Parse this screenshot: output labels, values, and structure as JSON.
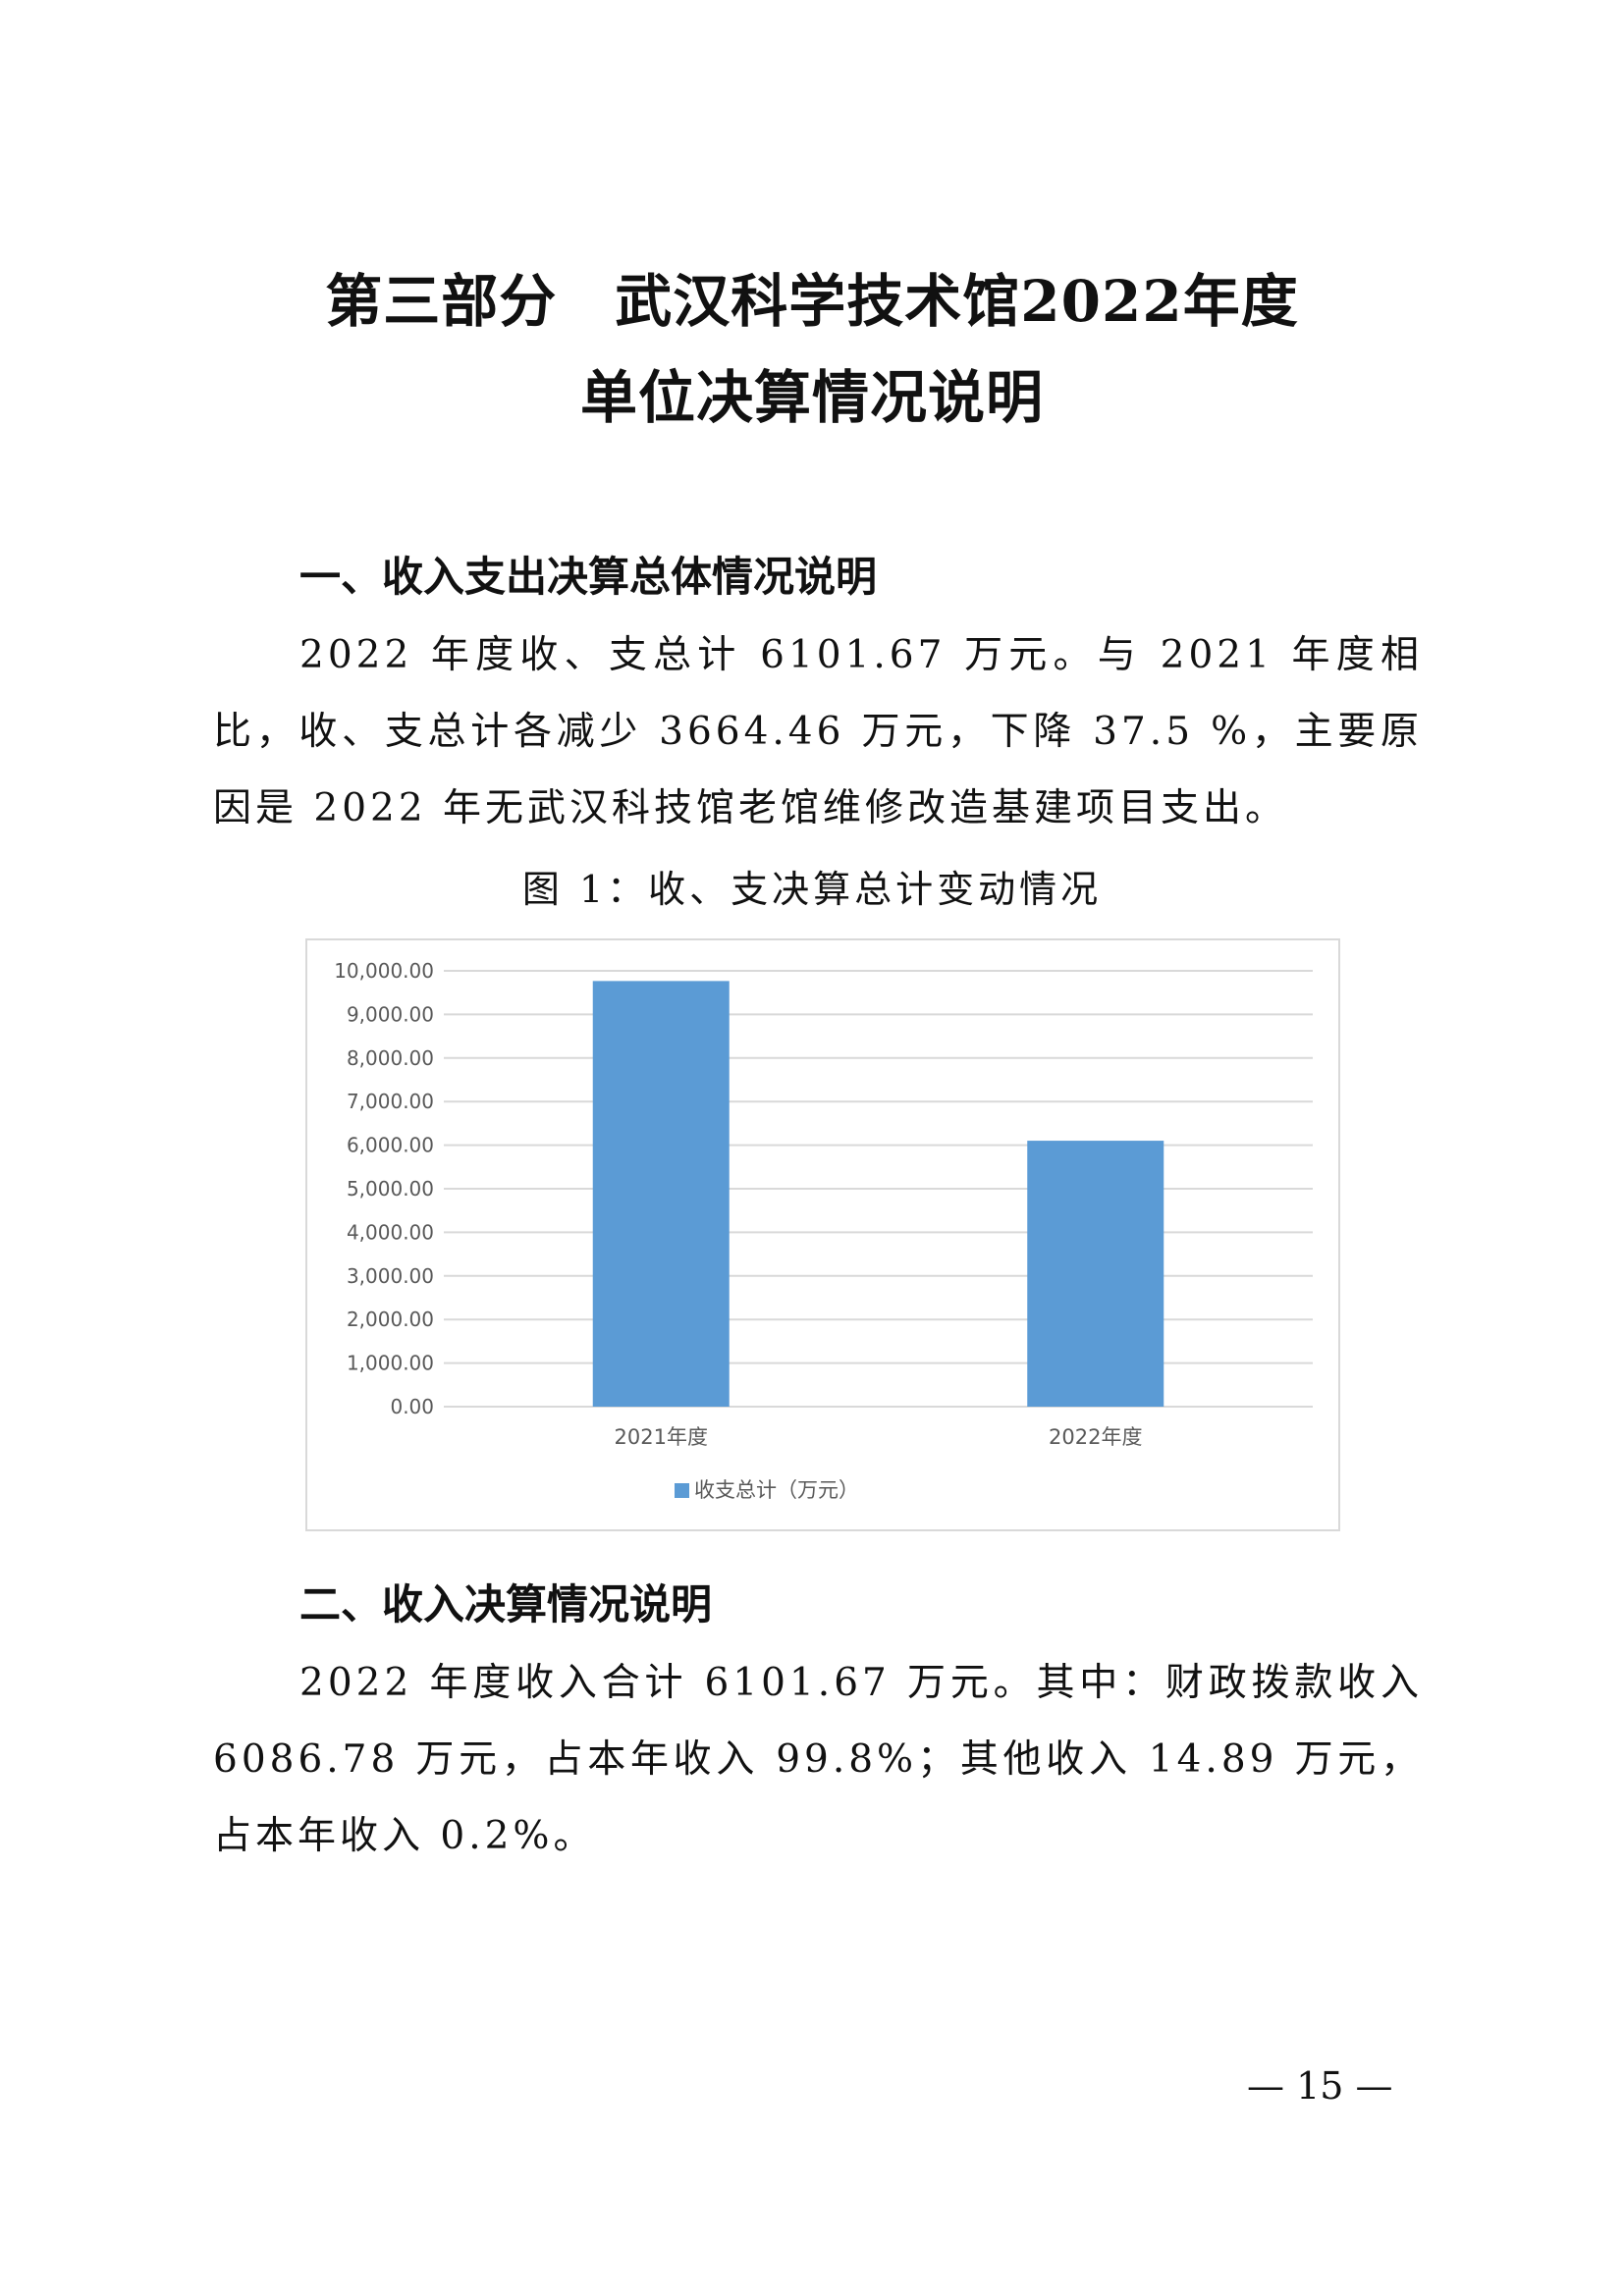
{
  "title": {
    "line1": "第三部分　武汉科学技术馆2022年度",
    "line2": "单位决算情况说明"
  },
  "section1": {
    "heading": "一、收入支出决算总体情况说明",
    "paragraph": "2022 年度收、支总计 6101.67 万元。与 2021 年度相比，收、支总计各减少 3664.46 万元，下降 37.5 %，主要原因是 2022 年无武汉科技馆老馆维修改造基建项目支出。",
    "figure_caption": "图 1：收、支决算总计变动情况"
  },
  "chart_data": {
    "type": "bar",
    "title": "",
    "categories": [
      "2021年度",
      "2022年度"
    ],
    "series": [
      {
        "name": "收支总计（万元）",
        "values": [
          9766.13,
          6101.67
        ],
        "color": "#5b9bd5"
      }
    ],
    "yticks": [
      "0.00",
      "1,000.00",
      "2,000.00",
      "3,000.00",
      "4,000.00",
      "5,000.00",
      "6,000.00",
      "7,000.00",
      "8,000.00",
      "9,000.00",
      "10,000.00"
    ],
    "ylim": [
      0,
      10000
    ],
    "grid": true,
    "legend_position": "bottom"
  },
  "section2": {
    "heading": "二、收入决算情况说明",
    "paragraph": "2022 年度收入合计 6101.67 万元。其中：财政拨款收入 6086.78 万元，占本年收入 99.8%；其他收入 14.89 万元，占本年收入 0.2%。"
  },
  "page_number": "— 15 —"
}
